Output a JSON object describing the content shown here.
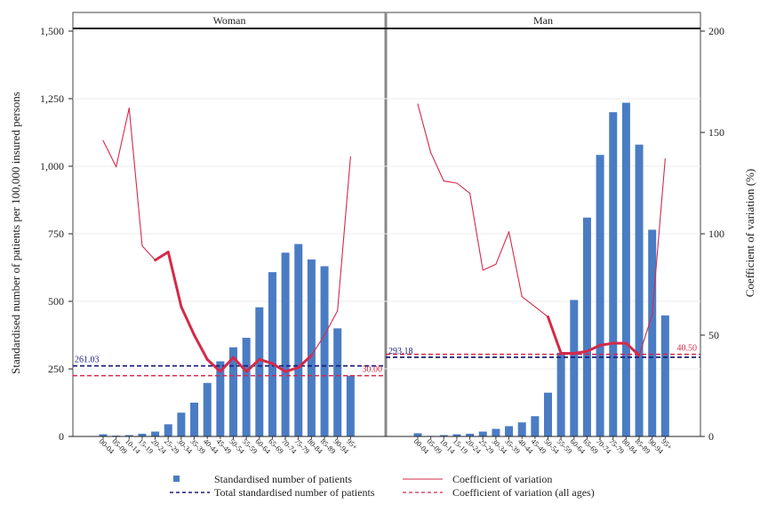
{
  "chart_data": {
    "type": "bar",
    "panels": [
      "Woman",
      "Man"
    ],
    "categories": [
      "00-04",
      "05-09",
      "10-14",
      "15-19",
      "20-24",
      "25-29",
      "30-34",
      "35-39",
      "40-44",
      "45-49",
      "50-54",
      "55-59",
      "60-64",
      "65-69",
      "70-74",
      "75-79",
      "80-84",
      "85-89",
      "90-94",
      "95+"
    ],
    "ylabel": "Standardised number of patients per 100,000 insured persons",
    "y2label": "Coefficient of variation (%)",
    "ylim": [
      0,
      1500
    ],
    "y2lim": [
      0,
      200
    ],
    "yticks": [
      "0",
      "250",
      "500",
      "750",
      "1,000",
      "1,250",
      "1,500"
    ],
    "y2ticks": [
      "0",
      "50",
      "100",
      "150",
      "200"
    ],
    "series": [
      {
        "name": "Standardised number of patients",
        "type": "bar",
        "color": "#4a7cc4",
        "values": {
          "Woman": [
            8,
            3,
            5,
            10,
            18,
            45,
            88,
            125,
            198,
            278,
            330,
            365,
            478,
            608,
            680,
            712,
            655,
            630,
            400,
            225
          ],
          "Man": [
            12,
            2,
            5,
            8,
            10,
            18,
            28,
            38,
            52,
            75,
            162,
            310,
            505,
            810,
            1042,
            1200,
            1235,
            1080,
            765,
            448
          ]
        }
      },
      {
        "name": "Coefficient of variation",
        "type": "line",
        "axis": "right",
        "color": "#d42a4a",
        "values": {
          "Woman": [
            146,
            133,
            162,
            94,
            87,
            91,
            64,
            50,
            38,
            32,
            39,
            32,
            38,
            36,
            32,
            34,
            40,
            50,
            62,
            138
          ],
          "Man": [
            164,
            140,
            126,
            125,
            120,
            82,
            85,
            101,
            69,
            64,
            59,
            41,
            41,
            42,
            45,
            46,
            46,
            40,
            60,
            137
          ]
        }
      },
      {
        "name": "Total standardised number of patients",
        "type": "hline",
        "color": "#1a1f7a",
        "values": {
          "Woman": 261.03,
          "Man": 293.18
        },
        "labels": {
          "Woman": "261.03",
          "Man": "293.18"
        }
      },
      {
        "name": "Coefficient of variation (all ages)",
        "type": "hline",
        "axis": "right",
        "color": "#d42a4a",
        "values": {
          "Woman": 30.0,
          "Man": 40.5
        },
        "labels": {
          "Woman": "30.00",
          "Man": "40.50"
        }
      }
    ],
    "legend": {
      "position": "bottom",
      "items": [
        "Standardised number of patients",
        "Coefficient of variation",
        "Total standardised number of patients",
        "Coefficient of variation (all ages)"
      ]
    }
  }
}
